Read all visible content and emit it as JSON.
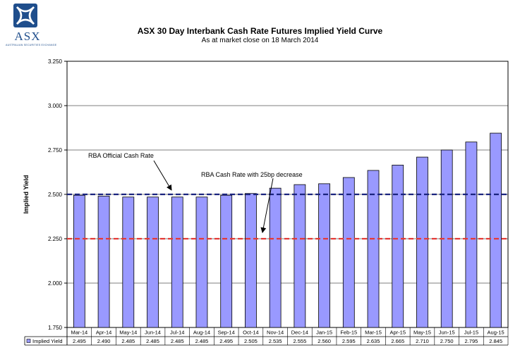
{
  "logo": {
    "text": "ASX",
    "subtext": "AUSTRALIAN SECURITIES EXCHANGE",
    "color": "#1f4e8c"
  },
  "chart_data": {
    "type": "bar",
    "title": "ASX 30 Day Interbank Cash Rate Futures Implied Yield Curve",
    "subtitle": "As at market close on 18 March 2014",
    "ylabel": "Implied Yield",
    "ylim": [
      1.75,
      3.25
    ],
    "yticks": [
      1.75,
      2.0,
      2.25,
      2.5,
      2.75,
      3.0,
      3.25
    ],
    "ytick_labels": [
      "1.750",
      "2.000",
      "2.250",
      "2.500",
      "2.750",
      "3.000",
      "3.250"
    ],
    "categories": [
      "Mar-14",
      "Apr-14",
      "May-14",
      "Jun-14",
      "Jul-14",
      "Aug-14",
      "Sep-14",
      "Oct-14",
      "Nov-14",
      "Dec-14",
      "Jan-15",
      "Feb-15",
      "Mar-15",
      "Apr-15",
      "May-15",
      "Jun-15",
      "Jul-15",
      "Aug-15"
    ],
    "series": [
      {
        "name": "Implied Yield",
        "values": [
          2.495,
          2.49,
          2.485,
          2.485,
          2.485,
          2.485,
          2.495,
          2.505,
          2.535,
          2.555,
          2.56,
          2.595,
          2.635,
          2.665,
          2.71,
          2.75,
          2.795,
          2.845
        ],
        "labels": [
          "2.495",
          "2.490",
          "2.485",
          "2.485",
          "2.485",
          "2.485",
          "2.495",
          "2.505",
          "2.535",
          "2.555",
          "2.560",
          "2.595",
          "2.635",
          "2.665",
          "2.710",
          "2.750",
          "2.795",
          "2.845"
        ]
      }
    ],
    "reference_lines": [
      {
        "label": "RBA Official Cash Rate",
        "value": 2.5,
        "color": "#1a237e"
      },
      {
        "label": "RBA Cash Rate with 25bp decrease",
        "value": 2.25,
        "color": "#e53935"
      }
    ],
    "bar_color": "#9999ff",
    "grid": true,
    "legend": "data-table-below"
  }
}
